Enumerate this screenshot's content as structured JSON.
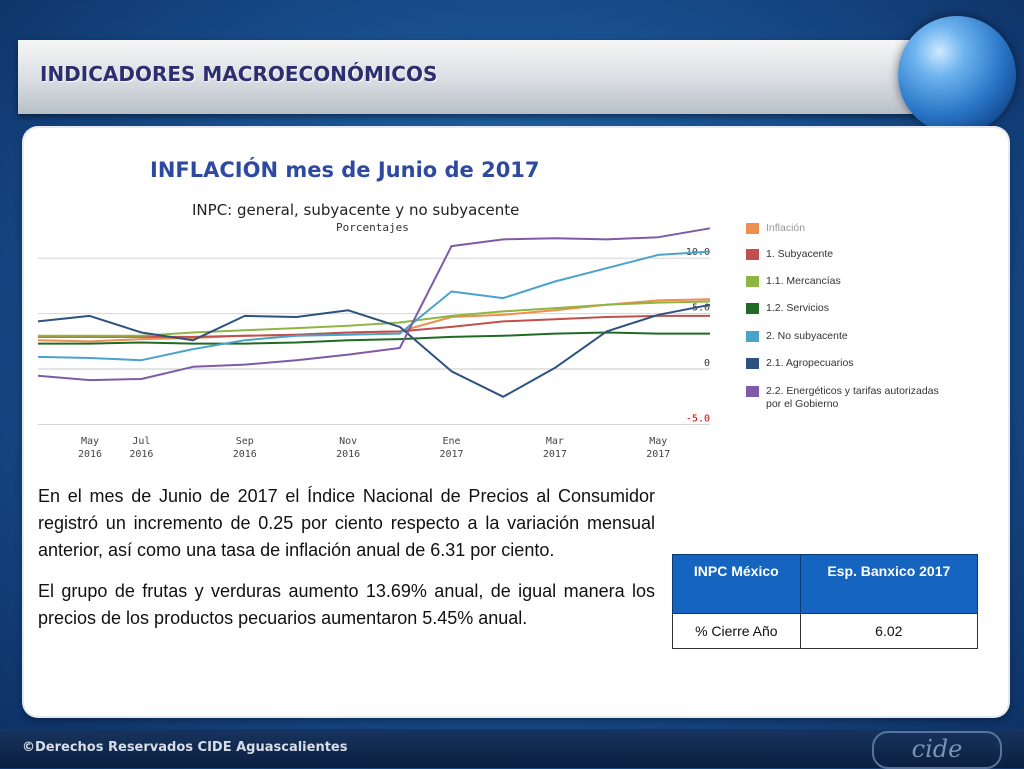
{
  "header": {
    "title": "INDICADORES MACROECONÓMICOS"
  },
  "main": {
    "section_title": "INFLACIÓN mes de Junio de 2017",
    "paragraphs": [
      "En el mes de Junio de 2017 el Índice Nacional de Precios al Consumidor registró un incremento de 0.25 por ciento respecto a la variación mensual anterior, así como una tasa de inflación anual de 6.31 por ciento.",
      "El grupo de frutas y verduras aumento 13.69% anual, de igual manera los precios de los productos pecuarios aumentaron  5.45% anual."
    ],
    "table": {
      "headers": [
        "INPC México",
        "Esp. Banxico 2017"
      ],
      "row": [
        "% Cierre Año",
        "6.02"
      ],
      "header_color": "#1565c0"
    }
  },
  "footer": {
    "text": "©Derechos Reservados CIDE Aguascalientes",
    "logo_text": "cide"
  },
  "chart_data": {
    "type": "line",
    "title": "INPC: general, subyacente y no subyacente",
    "subtitle": "Porcentajes",
    "x": [
      "2016-05",
      "2016-06",
      "2016-07",
      "2016-08",
      "2016-09",
      "2016-10",
      "2016-11",
      "2016-12",
      "2017-01",
      "2017-02",
      "2017-03",
      "2017-04",
      "2017-05",
      "2017-06"
    ],
    "x_tick_labels": [
      {
        "month": "May",
        "year": "2016",
        "index": 0
      },
      {
        "month": "Jul",
        "year": "2016",
        "index": 2
      },
      {
        "month": "Sep",
        "year": "2016",
        "index": 4
      },
      {
        "month": "Nov",
        "year": "2016",
        "index": 6
      },
      {
        "month": "Ene",
        "year": "2017",
        "index": 8
      },
      {
        "month": "Mar",
        "year": "2017",
        "index": 10
      },
      {
        "month": "May",
        "year": "2017",
        "index": 12
      }
    ],
    "ylim": [
      -5.5,
      13
    ],
    "y_ticks": [
      {
        "value": 10,
        "label": "10.0"
      },
      {
        "value": 5,
        "label": "5.0"
      },
      {
        "value": 0,
        "label": "0"
      },
      {
        "value": -5,
        "label": "-5.0"
      }
    ],
    "legend_position": "right",
    "series": [
      {
        "name": "Inflación",
        "color": "#ee8e4f",
        "values": [
          2.6,
          2.5,
          2.7,
          2.8,
          3.0,
          3.1,
          3.3,
          3.4,
          4.7,
          4.9,
          5.3,
          5.8,
          6.2,
          6.3
        ]
      },
      {
        "name": "1. Subyacente",
        "color": "#c0504d",
        "values": [
          2.9,
          2.9,
          2.9,
          2.9,
          3.0,
          3.1,
          3.3,
          3.4,
          3.8,
          4.3,
          4.5,
          4.7,
          4.8,
          4.8
        ]
      },
      {
        "name": "1.1. Mercancías",
        "color": "#8fb543",
        "values": [
          3.0,
          3.0,
          3.0,
          3.3,
          3.5,
          3.7,
          3.9,
          4.2,
          4.8,
          5.2,
          5.5,
          5.8,
          6.0,
          6.1
        ]
      },
      {
        "name": "1.2. Servicios",
        "color": "#1f6b24",
        "values": [
          2.3,
          2.3,
          2.4,
          2.3,
          2.3,
          2.4,
          2.6,
          2.7,
          2.9,
          3.0,
          3.2,
          3.3,
          3.2,
          3.2
        ]
      },
      {
        "name": "2. No subyacente",
        "color": "#4aa3c9",
        "values": [
          1.1,
          1.0,
          0.8,
          1.8,
          2.6,
          3.0,
          3.1,
          3.2,
          7.0,
          6.4,
          7.9,
          9.1,
          10.3,
          10.6
        ]
      },
      {
        "name": "2.1. Agropecuarios",
        "color": "#2e527f",
        "values": [
          4.3,
          4.8,
          3.3,
          2.6,
          4.8,
          4.7,
          5.3,
          3.8,
          -0.2,
          -2.5,
          0.1,
          3.4,
          4.9,
          5.8
        ]
      },
      {
        "name": "2.2. Energéticos y tarifas autorizadas por el Gobierno",
        "color": "#7f5aa6",
        "values": [
          -0.6,
          -1.0,
          -0.9,
          0.2,
          0.4,
          0.8,
          1.3,
          1.9,
          11.1,
          11.7,
          11.8,
          11.7,
          11.9,
          12.7
        ]
      }
    ]
  }
}
